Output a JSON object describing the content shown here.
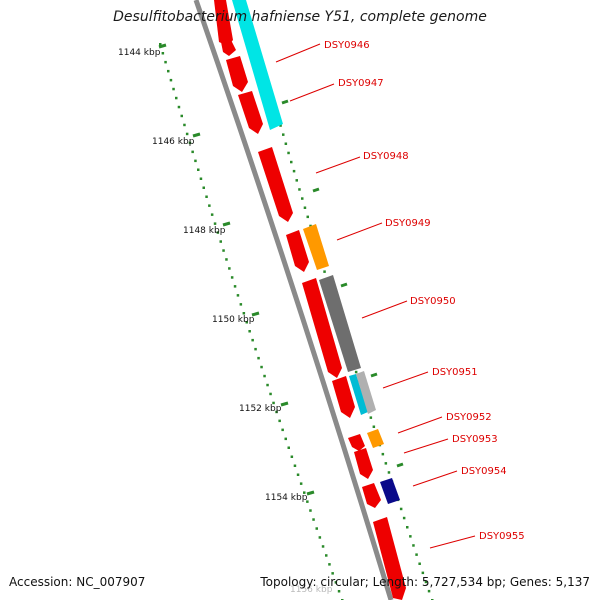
{
  "title": "Desulfitobacterium hafniense Y51, complete genome",
  "footer": {
    "accession": "Accession: NC_007907",
    "summary": "Topology: circular; Length: 5,727,534 bp; Genes: 5,137"
  },
  "scale_labels": [
    {
      "text": "1144 kbp"
    },
    {
      "text": "1146 kbp"
    },
    {
      "text": "1148 kbp"
    },
    {
      "text": "1150 kbp"
    },
    {
      "text": "1152 kbp"
    },
    {
      "text": "1154 kbp"
    },
    {
      "text": "1156 kbp"
    }
  ],
  "gene_labels": [
    {
      "text": "DSY0946"
    },
    {
      "text": "DSY0947"
    },
    {
      "text": "DSY0948"
    },
    {
      "text": "DSY0949"
    },
    {
      "text": "DSY0950"
    },
    {
      "text": "DSY0951"
    },
    {
      "text": "DSY0952"
    },
    {
      "text": "DSY0953"
    },
    {
      "text": "DSY0954"
    },
    {
      "text": "DSY0955"
    }
  ],
  "colors": {
    "gene_red": "#ee0000",
    "gene_cyan": "#00e5e5",
    "gene_orange": "#ff9900",
    "gene_gray": "#6e6e6e",
    "gene_light_gray": "#b0b0b0",
    "gene_navy": "#0a0a8a",
    "backbone": "#888888",
    "tick_green": "#2a8a2a",
    "label_red": "#dd0000"
  }
}
